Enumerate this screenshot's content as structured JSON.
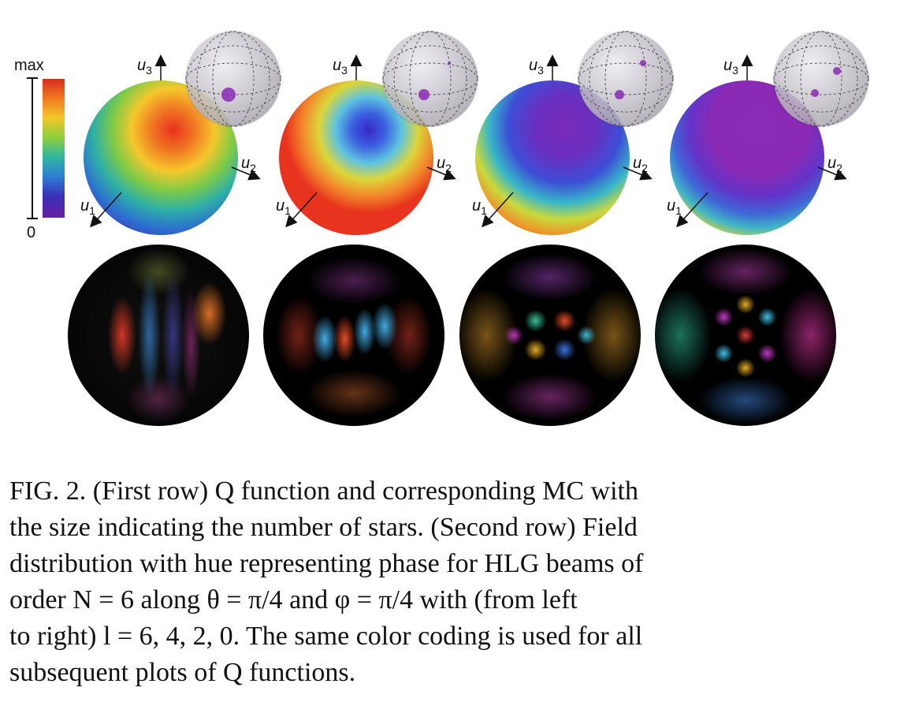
{
  "colorbar": {
    "max_label": "max",
    "min_label": "0"
  },
  "axes": {
    "u1": "u",
    "u1_sub": "1",
    "u2": "u",
    "u2_sub": "2",
    "u3": "u",
    "u3_sub": "3"
  },
  "panels": [
    {
      "l": 6,
      "q_colors": [
        "#e8421d",
        "#f5c12c",
        "#5dc25c",
        "#2b67cf",
        "#4a2aa8"
      ]
    },
    {
      "l": 4,
      "q_colors": [
        "#3b2ad0",
        "#6fc0e6",
        "#f2cf2e",
        "#e8421d",
        "#e8421d"
      ]
    },
    {
      "l": 2,
      "q_colors": [
        "#7a2bb8",
        "#4a3ad6",
        "#39b7c9",
        "#e8d63a",
        "#e23d24"
      ]
    },
    {
      "l": 0,
      "q_colors": [
        "#8a2ab3",
        "#7f2ab6",
        "#5b4ad8",
        "#44b2cf",
        "#f0922a"
      ]
    }
  ],
  "caption": {
    "line1": "FIG. 2.   (First row) Q function and corresponding MC with",
    "line2": "the size indicating the number of stars.  (Second row) Field",
    "line3": "distribution with hue representing phase for HLG beams of",
    "line4": "order N = 6 along θ = π/4 and φ = π/4 with (from left",
    "line5": "to right) l = 6, 4, 2, 0.  The same color coding is used for all",
    "line6": "subsequent plots of Q functions."
  }
}
